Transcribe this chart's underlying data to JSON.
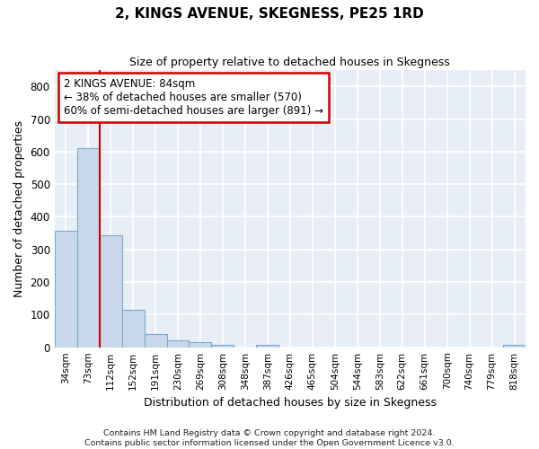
{
  "title": "2, KINGS AVENUE, SKEGNESS, PE25 1RD",
  "subtitle": "Size of property relative to detached houses in Skegness",
  "xlabel": "Distribution of detached houses by size in Skegness",
  "ylabel": "Number of detached properties",
  "bar_labels": [
    "34sqm",
    "73sqm",
    "112sqm",
    "152sqm",
    "191sqm",
    "230sqm",
    "269sqm",
    "308sqm",
    "348sqm",
    "387sqm",
    "426sqm",
    "465sqm",
    "504sqm",
    "544sqm",
    "583sqm",
    "622sqm",
    "661sqm",
    "700sqm",
    "740sqm",
    "779sqm",
    "818sqm"
  ],
  "bar_values": [
    358,
    611,
    343,
    115,
    40,
    22,
    15,
    8,
    0,
    8,
    0,
    0,
    0,
    0,
    0,
    0,
    0,
    0,
    0,
    0,
    8
  ],
  "bar_color": "#c8d8ea",
  "bar_edge_color": "#7aaacc",
  "ylim": [
    0,
    850
  ],
  "yticks": [
    0,
    100,
    200,
    300,
    400,
    500,
    600,
    700,
    800
  ],
  "annotation_text": "2 KINGS AVENUE: 84sqm\n← 38% of detached houses are smaller (570)\n60% of semi-detached houses are larger (891) →",
  "annotation_box_color": "#ffffff",
  "annotation_box_edge": "#cc0000",
  "line_color": "#cc0000",
  "footnote": "Contains HM Land Registry data © Crown copyright and database right 2024.\nContains public sector information licensed under the Open Government Licence v3.0.",
  "bg_color": "#ffffff",
  "plot_bg_color": "#e8eef6",
  "grid_color": "#ffffff",
  "title_fontsize": 11,
  "subtitle_fontsize": 9
}
